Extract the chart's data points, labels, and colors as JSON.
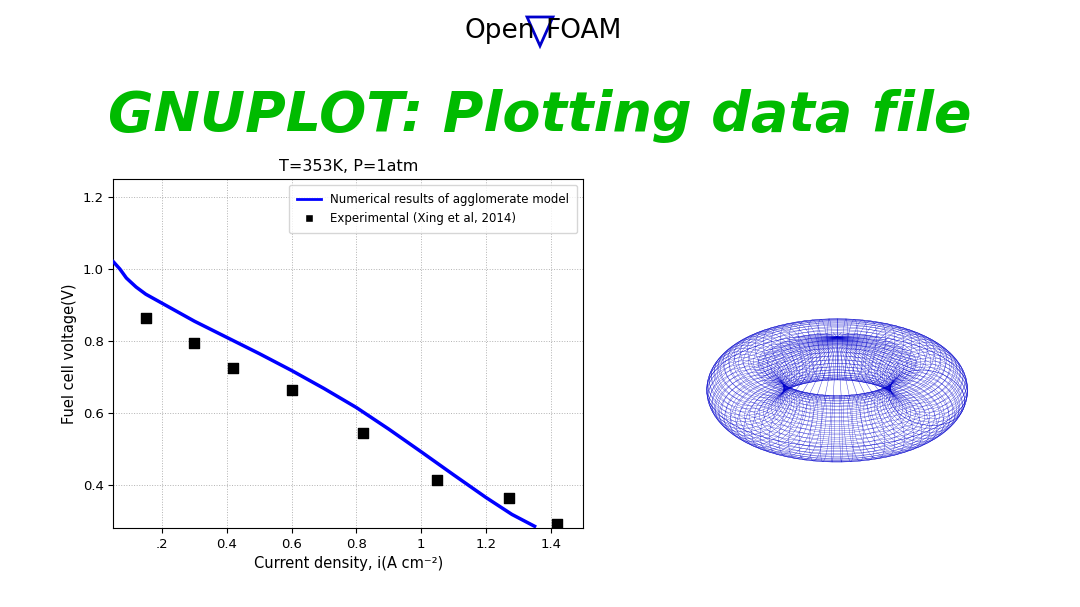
{
  "bg_color": "#ffffff",
  "title_openfoam_left": "Open",
  "title_openfoam_right": "FOAM",
  "title_gnuplot": "GNUPLOT: Plotting data file",
  "title_gnuplot_color": "#00bb00",
  "plot_title": "T=353K, P=1atm",
  "xlabel": "Current density, i(A cm⁻²)",
  "ylabel": "Fuel cell voltage(V)",
  "legend_line": "Numerical results of agglomerate model",
  "legend_scatter": "Experimental (Xing et al, 2014)",
  "line_color": "#0000ff",
  "scatter_color": "#000000",
  "xlim": [
    0.05,
    1.5
  ],
  "ylim": [
    0.28,
    1.25
  ],
  "xticks": [
    0.2,
    0.4,
    0.6,
    0.8,
    1.0,
    1.2,
    1.4
  ],
  "xtick_labels": [
    ".2",
    "0.4",
    "0.6",
    "0.8",
    "1",
    "1.2",
    "1.4"
  ],
  "yticks": [
    0.4,
    0.6,
    0.8,
    1.0,
    1.2
  ],
  "exp_x": [
    0.15,
    0.3,
    0.42,
    0.6,
    0.82,
    1.05,
    1.27,
    1.42
  ],
  "exp_y": [
    0.865,
    0.795,
    0.725,
    0.665,
    0.545,
    0.415,
    0.365,
    0.29
  ],
  "num_x": [
    0.05,
    0.07,
    0.09,
    0.12,
    0.15,
    0.2,
    0.3,
    0.4,
    0.5,
    0.6,
    0.7,
    0.8,
    0.9,
    1.0,
    1.1,
    1.2,
    1.28,
    1.35
  ],
  "num_y": [
    1.02,
    1.0,
    0.975,
    0.95,
    0.93,
    0.905,
    0.855,
    0.81,
    0.765,
    0.718,
    0.668,
    0.615,
    0.555,
    0.492,
    0.428,
    0.365,
    0.318,
    0.285
  ]
}
